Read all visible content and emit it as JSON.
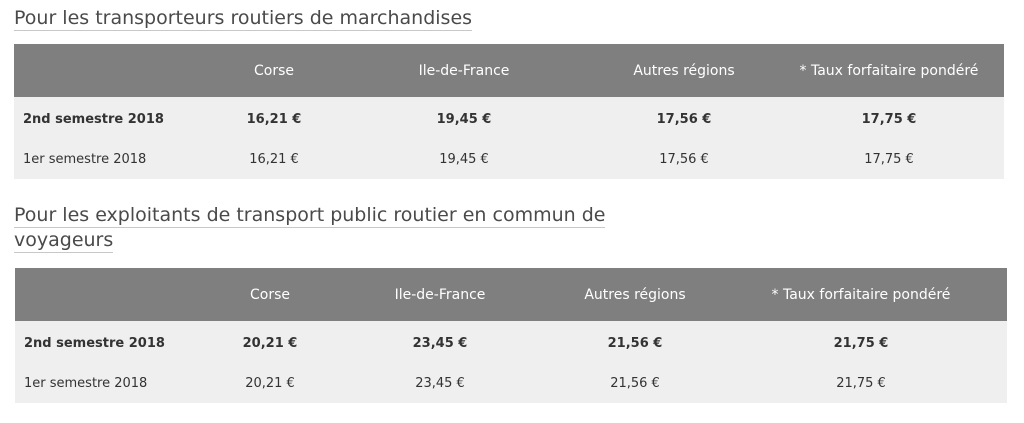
{
  "sections": [
    {
      "title": "Pour les transporteurs routiers de marchandises",
      "headers": [
        "",
        "Corse",
        "Ile-de-France",
        "Autres régions",
        "* Taux forfaitaire pondéré"
      ],
      "rows": [
        {
          "label": "2nd semestre 2018",
          "values": [
            "16,21 €",
            "19,45 €",
            "17,56 €",
            "17,75 €"
          ]
        },
        {
          "label": "1er semestre 2018",
          "values": [
            "16,21 €",
            "19,45 €",
            "17,56 €",
            "17,75 €"
          ]
        }
      ]
    },
    {
      "title": "Pour les exploitants de transport public routier en commun de voyageurs",
      "headers": [
        "",
        "Corse",
        "Ile-de-France",
        "Autres régions",
        "* Taux forfaitaire pondéré"
      ],
      "rows": [
        {
          "label": "2nd semestre 2018",
          "values": [
            "20,21 €",
            "23,45 €",
            "21,56 €",
            "21,75 €"
          ]
        },
        {
          "label": "1er semestre 2018",
          "values": [
            "20,21 €",
            "23,45 €",
            "21,56 €",
            "21,75 €"
          ]
        }
      ]
    }
  ]
}
